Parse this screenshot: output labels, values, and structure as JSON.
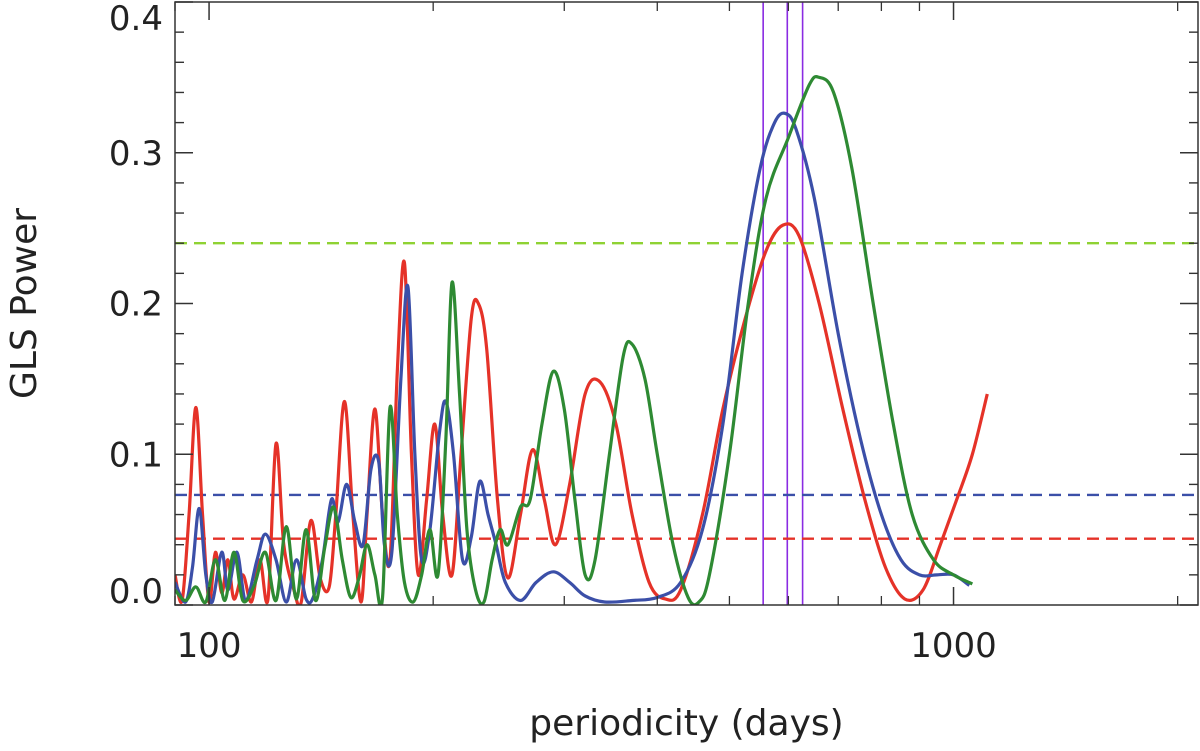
{
  "chart_data": {
    "type": "line",
    "title": "",
    "xlabel": "periodicity (days)",
    "ylabel": "GLS Power",
    "xscale": "log",
    "xlim": [
      90,
      2130
    ],
    "ylim": [
      0,
      0.4
    ],
    "xticks": [
      {
        "value": 100,
        "label": "100"
      },
      {
        "value": 1000,
        "label": "1000"
      }
    ],
    "yticks": [
      {
        "value": 0.0,
        "label": "0.0"
      },
      {
        "value": 0.1,
        "label": "0.1"
      },
      {
        "value": 0.2,
        "label": "0.2"
      },
      {
        "value": 0.3,
        "label": "0.3"
      },
      {
        "value": 0.4,
        "label": "0.4"
      }
    ],
    "grid": false,
    "legend": "none",
    "series": [
      {
        "color": "#e53228",
        "points": [
          [
            90,
            0.02
          ],
          [
            92,
            0.003
          ],
          [
            94,
            0.06
          ],
          [
            96,
            0.131
          ],
          [
            98,
            0.06
          ],
          [
            100,
            0.002
          ],
          [
            102,
            0.035
          ],
          [
            104,
            0.008
          ],
          [
            106,
            0.03
          ],
          [
            108,
            0.004
          ],
          [
            111,
            0.02
          ],
          [
            114,
            0.002
          ],
          [
            117,
            0.03
          ],
          [
            120,
            0.004
          ],
          [
            123,
            0.107
          ],
          [
            126,
            0.04
          ],
          [
            130,
            0.01
          ],
          [
            133,
            0.002
          ],
          [
            137,
            0.056
          ],
          [
            141,
            0.018
          ],
          [
            145,
            0.012
          ],
          [
            148,
            0.06
          ],
          [
            152,
            0.135
          ],
          [
            156,
            0.06
          ],
          [
            160,
            0.002
          ],
          [
            163,
            0.06
          ],
          [
            167,
            0.13
          ],
          [
            171,
            0.06
          ],
          [
            175,
            0.03
          ],
          [
            179,
            0.155
          ],
          [
            183,
            0.227
          ],
          [
            187,
            0.1
          ],
          [
            191,
            0.02
          ],
          [
            196,
            0.07
          ],
          [
            201,
            0.12
          ],
          [
            206,
            0.06
          ],
          [
            212,
            0.02
          ],
          [
            218,
            0.1
          ],
          [
            225,
            0.19
          ],
          [
            230,
            0.2
          ],
          [
            236,
            0.17
          ],
          [
            244,
            0.07
          ],
          [
            252,
            0.018
          ],
          [
            262,
            0.06
          ],
          [
            272,
            0.103
          ],
          [
            282,
            0.07
          ],
          [
            292,
            0.04
          ],
          [
            305,
            0.08
          ],
          [
            320,
            0.14
          ],
          [
            335,
            0.148
          ],
          [
            352,
            0.12
          ],
          [
            370,
            0.06
          ],
          [
            390,
            0.015
          ],
          [
            410,
            0.004
          ],
          [
            430,
            0.01
          ],
          [
            460,
            0.06
          ],
          [
            490,
            0.13
          ],
          [
            525,
            0.19
          ],
          [
            560,
            0.235
          ],
          [
            590,
            0.252
          ],
          [
            620,
            0.245
          ],
          [
            660,
            0.2
          ],
          [
            710,
            0.13
          ],
          [
            760,
            0.07
          ],
          [
            810,
            0.025
          ],
          [
            860,
            0.004
          ],
          [
            910,
            0.01
          ],
          [
            960,
            0.04
          ],
          [
            1010,
            0.07
          ],
          [
            1060,
            0.1
          ],
          [
            1110,
            0.14
          ]
        ]
      },
      {
        "color": "#3b4fa8",
        "points": [
          [
            90,
            0.015
          ],
          [
            93,
            0.002
          ],
          [
            95,
            0.025
          ],
          [
            97,
            0.064
          ],
          [
            99,
            0.02
          ],
          [
            101,
            0.002
          ],
          [
            104,
            0.035
          ],
          [
            106,
            0.01
          ],
          [
            109,
            0.035
          ],
          [
            112,
            0.003
          ],
          [
            116,
            0.03
          ],
          [
            119,
            0.047
          ],
          [
            123,
            0.03
          ],
          [
            127,
            0.002
          ],
          [
            131,
            0.03
          ],
          [
            135,
            0.004
          ],
          [
            138,
            0.005
          ],
          [
            142,
            0.03
          ],
          [
            146,
            0.07
          ],
          [
            149,
            0.055
          ],
          [
            153,
            0.08
          ],
          [
            157,
            0.055
          ],
          [
            161,
            0.04
          ],
          [
            165,
            0.09
          ],
          [
            169,
            0.095
          ],
          [
            172,
            0.04
          ],
          [
            176,
            0.035
          ],
          [
            181,
            0.15
          ],
          [
            185,
            0.211
          ],
          [
            189,
            0.1
          ],
          [
            193,
            0.03
          ],
          [
            198,
            0.05
          ],
          [
            204,
            0.115
          ],
          [
            208,
            0.135
          ],
          [
            213,
            0.1
          ],
          [
            219,
            0.03
          ],
          [
            225,
            0.045
          ],
          [
            231,
            0.082
          ],
          [
            237,
            0.06
          ],
          [
            243,
            0.04
          ],
          [
            250,
            0.015
          ],
          [
            262,
            0.003
          ],
          [
            275,
            0.015
          ],
          [
            290,
            0.022
          ],
          [
            305,
            0.015
          ],
          [
            320,
            0.006
          ],
          [
            340,
            0.002
          ],
          [
            370,
            0.003
          ],
          [
            400,
            0.005
          ],
          [
            430,
            0.015
          ],
          [
            460,
            0.05
          ],
          [
            490,
            0.12
          ],
          [
            520,
            0.22
          ],
          [
            550,
            0.29
          ],
          [
            575,
            0.32
          ],
          [
            595,
            0.326
          ],
          [
            615,
            0.315
          ],
          [
            650,
            0.27
          ],
          [
            700,
            0.18
          ],
          [
            750,
            0.11
          ],
          [
            800,
            0.06
          ],
          [
            850,
            0.03
          ],
          [
            900,
            0.02
          ],
          [
            950,
            0.02
          ],
          [
            1000,
            0.02
          ],
          [
            1050,
            0.013
          ]
        ]
      },
      {
        "color": "#2e8a33",
        "points": [
          [
            90,
            0.01
          ],
          [
            93,
            0.003
          ],
          [
            96,
            0.012
          ],
          [
            99,
            0.002
          ],
          [
            102,
            0.03
          ],
          [
            105,
            0.003
          ],
          [
            108,
            0.035
          ],
          [
            111,
            0.003
          ],
          [
            115,
            0.013
          ],
          [
            119,
            0.035
          ],
          [
            123,
            0.003
          ],
          [
            127,
            0.052
          ],
          [
            131,
            0.004
          ],
          [
            135,
            0.05
          ],
          [
            139,
            0.003
          ],
          [
            143,
            0.038
          ],
          [
            147,
            0.065
          ],
          [
            151,
            0.03
          ],
          [
            155,
            0.005
          ],
          [
            159,
            0.018
          ],
          [
            163,
            0.04
          ],
          [
            167,
            0.02
          ],
          [
            171,
            0.005
          ],
          [
            175,
            0.131
          ],
          [
            179,
            0.06
          ],
          [
            183,
            0.015
          ],
          [
            188,
            0.002
          ],
          [
            193,
            0.02
          ],
          [
            198,
            0.05
          ],
          [
            203,
            0.02
          ],
          [
            208,
            0.11
          ],
          [
            212,
            0.214
          ],
          [
            217,
            0.14
          ],
          [
            222,
            0.05
          ],
          [
            228,
            0.01
          ],
          [
            234,
            0.002
          ],
          [
            240,
            0.03
          ],
          [
            246,
            0.05
          ],
          [
            252,
            0.04
          ],
          [
            262,
            0.065
          ],
          [
            270,
            0.07
          ],
          [
            280,
            0.12
          ],
          [
            290,
            0.155
          ],
          [
            300,
            0.13
          ],
          [
            310,
            0.07
          ],
          [
            320,
            0.02
          ],
          [
            330,
            0.03
          ],
          [
            345,
            0.1
          ],
          [
            360,
            0.165
          ],
          [
            370,
            0.173
          ],
          [
            385,
            0.15
          ],
          [
            400,
            0.1
          ],
          [
            420,
            0.04
          ],
          [
            440,
            0.005
          ],
          [
            455,
            0.002
          ],
          [
            470,
            0.02
          ],
          [
            500,
            0.1
          ],
          [
            530,
            0.2
          ],
          [
            560,
            0.27
          ],
          [
            600,
            0.31
          ],
          [
            640,
            0.345
          ],
          [
            660,
            0.35
          ],
          [
            690,
            0.34
          ],
          [
            730,
            0.29
          ],
          [
            780,
            0.2
          ],
          [
            830,
            0.12
          ],
          [
            880,
            0.06
          ],
          [
            940,
            0.03
          ],
          [
            1000,
            0.02
          ],
          [
            1060,
            0.014
          ]
        ]
      }
    ],
    "reference_lines": [
      {
        "orientation": "horizontal",
        "value": 0.24,
        "color": "#8fd233",
        "style": "dashed"
      },
      {
        "orientation": "horizontal",
        "value": 0.073,
        "color": "#3b4fa8",
        "style": "dashed"
      },
      {
        "orientation": "horizontal",
        "value": 0.044,
        "color": "#e53228",
        "style": "dashed"
      },
      {
        "orientation": "vertical",
        "value": 555,
        "color": "#8a2be2",
        "style": "solid"
      },
      {
        "orientation": "vertical",
        "value": 598,
        "color": "#8a2be2",
        "style": "solid"
      },
      {
        "orientation": "vertical",
        "value": 627,
        "color": "#8a2be2",
        "style": "solid"
      }
    ]
  }
}
